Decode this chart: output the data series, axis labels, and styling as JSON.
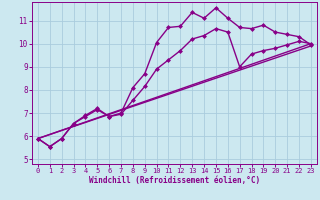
{
  "xlabel": "Windchill (Refroidissement éolien,°C)",
  "background_color": "#cce8f0",
  "grid_color": "#aaccdd",
  "line_color": "#880088",
  "xlim": [
    -0.5,
    23.5
  ],
  "ylim": [
    4.8,
    11.8
  ],
  "xticks": [
    0,
    1,
    2,
    3,
    4,
    5,
    6,
    7,
    8,
    9,
    10,
    11,
    12,
    13,
    14,
    15,
    16,
    17,
    18,
    19,
    20,
    21,
    22,
    23
  ],
  "yticks": [
    5,
    6,
    7,
    8,
    9,
    10,
    11
  ],
  "line1_x": [
    0,
    1,
    2,
    3,
    4,
    5,
    6,
    7,
    8,
    9,
    10,
    11,
    12,
    13,
    14,
    15,
    16,
    17,
    18,
    19,
    20,
    21,
    22,
    23
  ],
  "line1_y": [
    5.9,
    5.55,
    5.9,
    6.55,
    6.9,
    7.2,
    6.85,
    7.0,
    8.1,
    8.7,
    10.05,
    10.7,
    10.75,
    11.35,
    11.1,
    11.55,
    11.1,
    10.7,
    10.65,
    10.8,
    10.5,
    10.4,
    10.3,
    9.95
  ],
  "line2_x": [
    0,
    1,
    2,
    3,
    4,
    5,
    6,
    7,
    8,
    9,
    10,
    11,
    12,
    13,
    14,
    15,
    16,
    17,
    18,
    19,
    20,
    21,
    22,
    23
  ],
  "line2_y": [
    5.9,
    5.55,
    5.9,
    6.55,
    6.85,
    7.15,
    6.85,
    6.95,
    7.55,
    8.15,
    8.9,
    9.3,
    9.7,
    10.2,
    10.35,
    10.65,
    10.5,
    9.0,
    9.55,
    9.7,
    9.8,
    9.95,
    10.1,
    10.0
  ],
  "line3_x": [
    0,
    23
  ],
  "line3_y": [
    5.9,
    9.9
  ],
  "line4_x": [
    0,
    23
  ],
  "line4_y": [
    5.9,
    10.0
  ],
  "marker": "D",
  "markersize": 2.5,
  "linewidth": 1.0
}
